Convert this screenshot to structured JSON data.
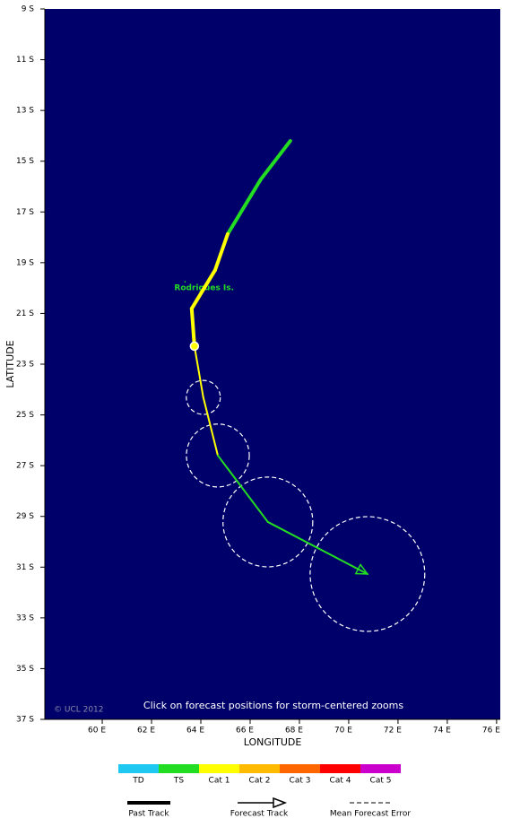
{
  "chart_data": {
    "type": "track",
    "xlim": [
      57.67,
      76.15
    ],
    "ylim": [
      -37,
      -9
    ],
    "xticks": [
      {
        "value": 60,
        "label": "60 E"
      },
      {
        "value": 62,
        "label": "62 E"
      },
      {
        "value": 64,
        "label": "64 E"
      },
      {
        "value": 66,
        "label": "66 E"
      },
      {
        "value": 68,
        "label": "68 E"
      },
      {
        "value": 70,
        "label": "70 E"
      },
      {
        "value": 72,
        "label": "72 E"
      },
      {
        "value": 74,
        "label": "74 E"
      },
      {
        "value": 76,
        "label": "76 E"
      }
    ],
    "yticks": [
      {
        "value": -9,
        "label": "9 S"
      },
      {
        "value": -11,
        "label": "11 S"
      },
      {
        "value": -13,
        "label": "13 S"
      },
      {
        "value": -15,
        "label": "15 S"
      },
      {
        "value": -17,
        "label": "17 S"
      },
      {
        "value": -19,
        "label": "19 S"
      },
      {
        "value": -21,
        "label": "21 S"
      },
      {
        "value": -23,
        "label": "23 S"
      },
      {
        "value": -25,
        "label": "25 S"
      },
      {
        "value": -27,
        "label": "27 S"
      },
      {
        "value": -29,
        "label": "29 S"
      },
      {
        "value": -31,
        "label": "31 S"
      },
      {
        "value": -33,
        "label": "33 S"
      },
      {
        "value": -35,
        "label": "35 S"
      },
      {
        "value": -37,
        "label": "37 S"
      }
    ],
    "x_label": "LONGITUDE",
    "y_label": "LATITUDE",
    "note": "Click on forecast positions for storm-centered zooms",
    "copyright": "© UCL 2012",
    "background": "#00006b",
    "categories": [
      {
        "name": "TD",
        "color": "#1ec8f0"
      },
      {
        "name": "TS",
        "color": "#22dd22"
      },
      {
        "name": "Cat 1",
        "color": "#ffff00"
      },
      {
        "name": "Cat 2",
        "color": "#ffbb00"
      },
      {
        "name": "Cat 3",
        "color": "#ff6600"
      },
      {
        "name": "Cat 4",
        "color": "#ff0000"
      },
      {
        "name": "Cat 5",
        "color": "#cc00cc"
      }
    ],
    "past_track": {
      "name": "Past Track",
      "lon": [
        67.63,
        66.43,
        65.09,
        64.58,
        63.63,
        63.74
      ],
      "lat": [
        -14.2,
        -15.72,
        -17.87,
        -19.29,
        -20.81,
        -22.29
      ],
      "category": [
        "TS",
        "TS",
        "TS",
        "Cat 1",
        "Cat 1",
        "Cat 1"
      ]
    },
    "forecast_track": {
      "name": "Forecast Track",
      "lon": [
        63.74,
        64.1,
        64.69,
        66.72,
        70.76
      ],
      "lat": [
        -22.29,
        -24.31,
        -26.6,
        -29.22,
        -31.27
      ],
      "category": [
        "Cat 1",
        "Cat 1",
        "Cat 1",
        "TS",
        "TS"
      ],
      "error_radius": [
        null,
        0.67,
        1.24,
        1.77,
        2.26
      ]
    },
    "error_label": "Mean Forecast Error",
    "places": [
      {
        "name": "Rodrigues Is.",
        "lon": 63.36,
        "lat": -19.75
      }
    ]
  }
}
